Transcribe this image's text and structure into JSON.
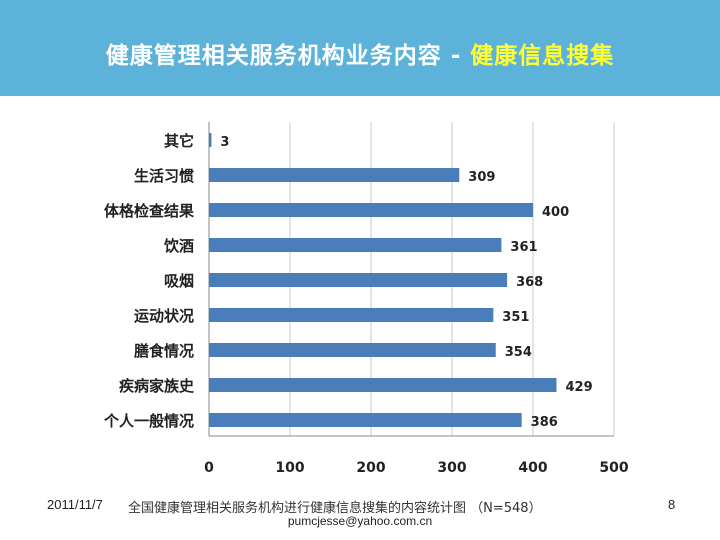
{
  "slide": {
    "title_main": "健康管理相关服务机构业务内容 - ",
    "title_highlight": "健康信息搜集",
    "date": "2011/11/7",
    "caption": "全国健康管理相关服务机构进行健康信息搜集的内容统计图 （N=548）",
    "email": "pumcjesse@yahoo.com.cn",
    "page_number": "8"
  },
  "colors": {
    "header": "#5DB2DA",
    "bar": "#4A7EBB",
    "highlight": "#FFFF33"
  },
  "chart_data": {
    "type": "bar",
    "orientation": "horizontal",
    "categories": [
      "其它",
      "生活习惯",
      "体格检查结果",
      "饮酒",
      "吸烟",
      "运动状况",
      "膳食情况",
      "疾病家族史",
      "个人一般情况"
    ],
    "values": [
      3,
      309,
      400,
      361,
      368,
      351,
      354,
      429,
      386
    ],
    "xlim": [
      0,
      500
    ],
    "xticks": [
      0,
      100,
      200,
      300,
      400,
      500
    ],
    "grid": true,
    "legend": "none",
    "title": "",
    "xlabel": "",
    "ylabel": ""
  }
}
